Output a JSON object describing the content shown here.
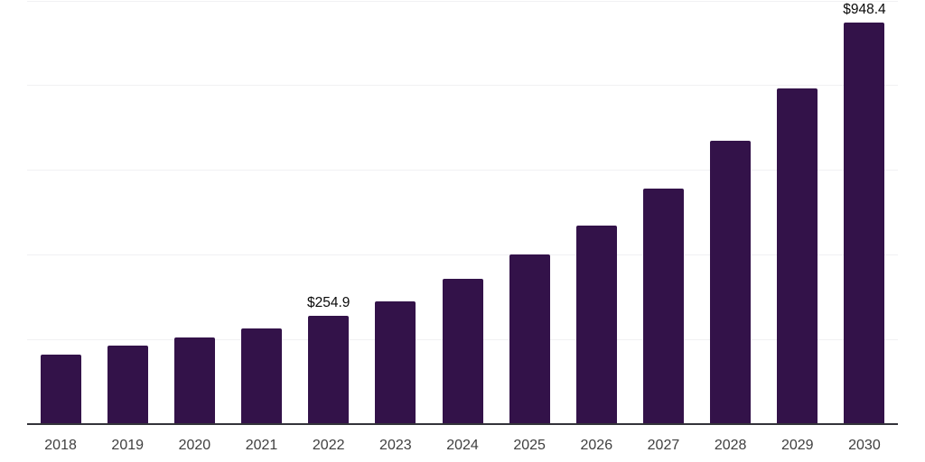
{
  "chart_data": {
    "type": "bar",
    "title": "",
    "xlabel": "",
    "ylabel": "",
    "categories": [
      "2018",
      "2019",
      "2020",
      "2021",
      "2022",
      "2023",
      "2024",
      "2025",
      "2026",
      "2027",
      "2028",
      "2029",
      "2030"
    ],
    "values": [
      165,
      186,
      204,
      227,
      254.9,
      290,
      343,
      400,
      470,
      556,
      669,
      793,
      948.4
    ],
    "point_labels": {
      "2022": "$254.9",
      "2030": "$948.4"
    },
    "ylim": [
      0,
      1000
    ],
    "gridline_step": 200,
    "grid": "horizontal",
    "legend": "none",
    "colors": {
      "bar": "#331249",
      "gridline": "#f1f1f3",
      "axis_line": "#33333a",
      "value_label": "#0a0a0a",
      "tick_label": "#404040",
      "background": "#ffffff"
    }
  }
}
